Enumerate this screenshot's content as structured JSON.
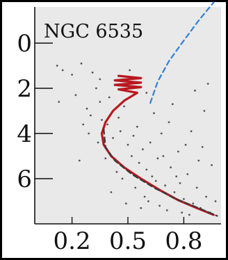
{
  "chart_data": {
    "type": "scatter",
    "title": "NGC 6535",
    "xlabel": "",
    "ylabel": "",
    "xlim": [
      0.0,
      1.0
    ],
    "ylim": [
      8.0,
      -1.6
    ],
    "y_inverted": true,
    "xticks": [
      {
        "value": 0.2,
        "label": "0.2"
      },
      {
        "value": 0.5,
        "label": "0.5"
      },
      {
        "value": 0.8,
        "label": "0.8"
      }
    ],
    "yticks": [
      {
        "value": 0,
        "label": "0"
      },
      {
        "value": 2,
        "label": "2"
      },
      {
        "value": 4,
        "label": "4"
      },
      {
        "value": 6,
        "label": "6"
      }
    ],
    "series": [
      {
        "kind": "line",
        "style": "dashed",
        "color": "#2f7fd6",
        "points": [
          [
            0.62,
            2.65
          ],
          [
            0.66,
            1.7
          ],
          [
            0.72,
            0.8
          ],
          [
            0.79,
            0.0
          ],
          [
            0.88,
            -1.0
          ],
          [
            0.96,
            -1.8
          ]
        ]
      },
      {
        "kind": "line",
        "style": "solid",
        "color": "#b8181f",
        "points": [
          [
            0.45,
            1.45
          ],
          [
            0.57,
            1.55
          ],
          [
            0.43,
            1.65
          ],
          [
            0.57,
            1.75
          ],
          [
            0.43,
            1.85
          ],
          [
            0.57,
            1.95
          ],
          [
            0.45,
            2.05
          ],
          [
            0.55,
            2.2
          ],
          [
            0.48,
            2.55
          ],
          [
            0.42,
            3.0
          ],
          [
            0.38,
            3.5
          ],
          [
            0.36,
            4.0
          ],
          [
            0.37,
            4.5
          ],
          [
            0.41,
            5.0
          ],
          [
            0.48,
            5.5
          ],
          [
            0.57,
            6.0
          ],
          [
            0.67,
            6.5
          ],
          [
            0.77,
            6.95
          ],
          [
            0.87,
            7.3
          ],
          [
            0.96,
            7.6
          ]
        ]
      },
      {
        "kind": "line",
        "style": "dashed",
        "color": "#3a3a3a",
        "points": [
          [
            0.37,
            3.8
          ],
          [
            0.38,
            4.6
          ],
          [
            0.43,
            5.2
          ],
          [
            0.52,
            5.8
          ],
          [
            0.64,
            6.4
          ],
          [
            0.76,
            6.9
          ],
          [
            0.88,
            7.3
          ],
          [
            0.98,
            7.65
          ]
        ]
      },
      {
        "kind": "scatter",
        "color": "#555555",
        "points": [
          [
            0.12,
            1.0
          ],
          [
            0.15,
            1.2
          ],
          [
            0.13,
            2.6
          ],
          [
            0.2,
            1.4
          ],
          [
            0.25,
            0.9
          ],
          [
            0.28,
            2.9
          ],
          [
            0.3,
            3.2
          ],
          [
            0.33,
            2.0
          ],
          [
            0.35,
            1.6
          ],
          [
            0.36,
            3.4
          ],
          [
            0.39,
            3.6
          ],
          [
            0.4,
            2.4
          ],
          [
            0.42,
            4.2
          ],
          [
            0.45,
            3.3
          ],
          [
            0.46,
            3.9
          ],
          [
            0.48,
            2.8
          ],
          [
            0.5,
            4.5
          ],
          [
            0.52,
            5.0
          ],
          [
            0.53,
            4.1
          ],
          [
            0.55,
            3.7
          ],
          [
            0.56,
            5.3
          ],
          [
            0.58,
            4.7
          ],
          [
            0.6,
            2.2
          ],
          [
            0.6,
            5.6
          ],
          [
            0.62,
            4.4
          ],
          [
            0.63,
            5.9
          ],
          [
            0.65,
            6.1
          ],
          [
            0.66,
            5.1
          ],
          [
            0.68,
            4.0
          ],
          [
            0.7,
            6.3
          ],
          [
            0.72,
            3.5
          ],
          [
            0.73,
            5.5
          ],
          [
            0.75,
            6.6
          ],
          [
            0.77,
            4.8
          ],
          [
            0.78,
            6.2
          ],
          [
            0.8,
            6.9
          ],
          [
            0.82,
            5.8
          ],
          [
            0.84,
            3.9
          ],
          [
            0.85,
            7.1
          ],
          [
            0.87,
            6.4
          ],
          [
            0.89,
            7.3
          ],
          [
            0.9,
            4.6
          ],
          [
            0.92,
            6.8
          ],
          [
            0.94,
            7.5
          ],
          [
            0.95,
            5.4
          ],
          [
            0.97,
            7.0
          ],
          [
            0.22,
            2.3
          ],
          [
            0.26,
            3.6
          ],
          [
            0.31,
            1.3
          ],
          [
            0.34,
            4.4
          ],
          [
            0.38,
            5.1
          ],
          [
            0.44,
            5.7
          ],
          [
            0.47,
            6.0
          ],
          [
            0.51,
            1.2
          ],
          [
            0.54,
            6.4
          ],
          [
            0.59,
            6.8
          ],
          [
            0.61,
            7.0
          ],
          [
            0.64,
            3.1
          ],
          [
            0.67,
            7.2
          ],
          [
            0.71,
            7.4
          ],
          [
            0.74,
            2.7
          ],
          [
            0.79,
            7.5
          ],
          [
            0.83,
            7.6
          ],
          [
            0.86,
            2.1
          ],
          [
            0.91,
            3.0
          ],
          [
            0.93,
            1.8
          ],
          [
            0.41,
            6.6
          ],
          [
            0.49,
            7.1
          ],
          [
            0.57,
            7.3
          ],
          [
            0.69,
            5.0
          ],
          [
            0.76,
            5.9
          ],
          [
            0.81,
            4.5
          ],
          [
            0.88,
            5.2
          ],
          [
            0.35,
            2.6
          ],
          [
            0.29,
            4.0
          ],
          [
            0.24,
            5.2
          ]
        ]
      }
    ],
    "grid": false,
    "legend": "none"
  }
}
